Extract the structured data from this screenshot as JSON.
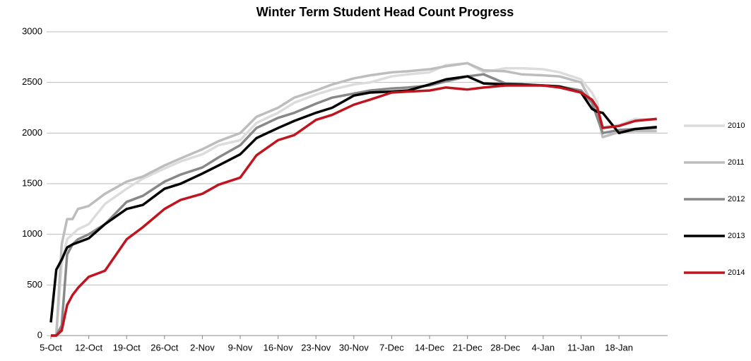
{
  "chart_data": {
    "type": "line",
    "title": "Winter Term Student Head Count Progress",
    "x": [
      0,
      1,
      2,
      3,
      4,
      5,
      7,
      10,
      14,
      17,
      21,
      24,
      28,
      31,
      35,
      38,
      42,
      45,
      49,
      52,
      56,
      59,
      63,
      66,
      70,
      73,
      77,
      80,
      84,
      87,
      91,
      94,
      98,
      100,
      101,
      102,
      105,
      108,
      112
    ],
    "xlim": [
      0,
      114
    ],
    "xticks": [
      {
        "value": 0,
        "label": "5-Oct"
      },
      {
        "value": 7,
        "label": "12-Oct"
      },
      {
        "value": 14,
        "label": "19-Oct"
      },
      {
        "value": 21,
        "label": "26-Oct"
      },
      {
        "value": 28,
        "label": "2-Nov"
      },
      {
        "value": 35,
        "label": "9-Nov"
      },
      {
        "value": 42,
        "label": "16-Nov"
      },
      {
        "value": 49,
        "label": "23-Nov"
      },
      {
        "value": 56,
        "label": "30-Nov"
      },
      {
        "value": 63,
        "label": "7-Dec"
      },
      {
        "value": 70,
        "label": "14-Dec"
      },
      {
        "value": 77,
        "label": "21-Dec"
      },
      {
        "value": 84,
        "label": "28-Dec"
      },
      {
        "value": 91,
        "label": "4-Jan"
      },
      {
        "value": 98,
        "label": "11-Jan"
      },
      {
        "value": 105,
        "label": "18-Jan"
      }
    ],
    "ylim": [
      0,
      3000
    ],
    "yticks": [
      0,
      500,
      1000,
      1500,
      2000,
      2500,
      3000
    ],
    "grid": true,
    "legend": "right",
    "series": [
      {
        "name": "2010",
        "color": "#dcdcdc",
        "values": [
          0,
          0,
          700,
          950,
          1000,
          1050,
          1100,
          1300,
          1450,
          1550,
          1650,
          1720,
          1790,
          1880,
          1930,
          2100,
          2200,
          2300,
          2380,
          2430,
          2480,
          2500,
          2560,
          2580,
          2600,
          2670,
          2690,
          2600,
          2640,
          2640,
          2630,
          2600,
          2530,
          2400,
          2300,
          2060,
          2080,
          2140,
          2130
        ]
      },
      {
        "name": "2011",
        "color": "#bdbdbd",
        "values": [
          0,
          0,
          900,
          1150,
          1150,
          1250,
          1280,
          1400,
          1520,
          1570,
          1680,
          1750,
          1840,
          1920,
          2000,
          2160,
          2250,
          2350,
          2420,
          2480,
          2540,
          2570,
          2600,
          2610,
          2630,
          2660,
          2690,
          2620,
          2610,
          2580,
          2570,
          2560,
          2500,
          2300,
          2200,
          1960,
          2010,
          2020,
          2020
        ]
      },
      {
        "name": "2012",
        "color": "#888888",
        "values": [
          0,
          0,
          100,
          800,
          900,
          950,
          1000,
          1100,
          1320,
          1380,
          1520,
          1590,
          1660,
          1760,
          1880,
          2050,
          2150,
          2200,
          2290,
          2350,
          2390,
          2420,
          2440,
          2450,
          2470,
          2510,
          2560,
          2580,
          2490,
          2480,
          2470,
          2460,
          2420,
          2300,
          2150,
          2000,
          2030,
          2040,
          2050
        ]
      },
      {
        "name": "2013",
        "color": "#000000",
        "values": [
          130,
          650,
          750,
          870,
          900,
          920,
          960,
          1100,
          1250,
          1290,
          1450,
          1500,
          1600,
          1680,
          1790,
          1950,
          2050,
          2120,
          2200,
          2250,
          2370,
          2400,
          2410,
          2420,
          2480,
          2530,
          2560,
          2490,
          2480,
          2480,
          2470,
          2460,
          2400,
          2240,
          2210,
          2200,
          2000,
          2040,
          2060
        ]
      },
      {
        "name": "2014",
        "color": "#c0141e",
        "values": [
          0,
          0,
          50,
          300,
          400,
          470,
          580,
          640,
          950,
          1070,
          1250,
          1340,
          1400,
          1490,
          1560,
          1780,
          1930,
          1980,
          2130,
          2180,
          2280,
          2330,
          2400,
          2410,
          2420,
          2450,
          2430,
          2450,
          2470,
          2470,
          2470,
          2450,
          2400,
          2330,
          2250,
          2050,
          2070,
          2120,
          2140
        ]
      }
    ]
  }
}
